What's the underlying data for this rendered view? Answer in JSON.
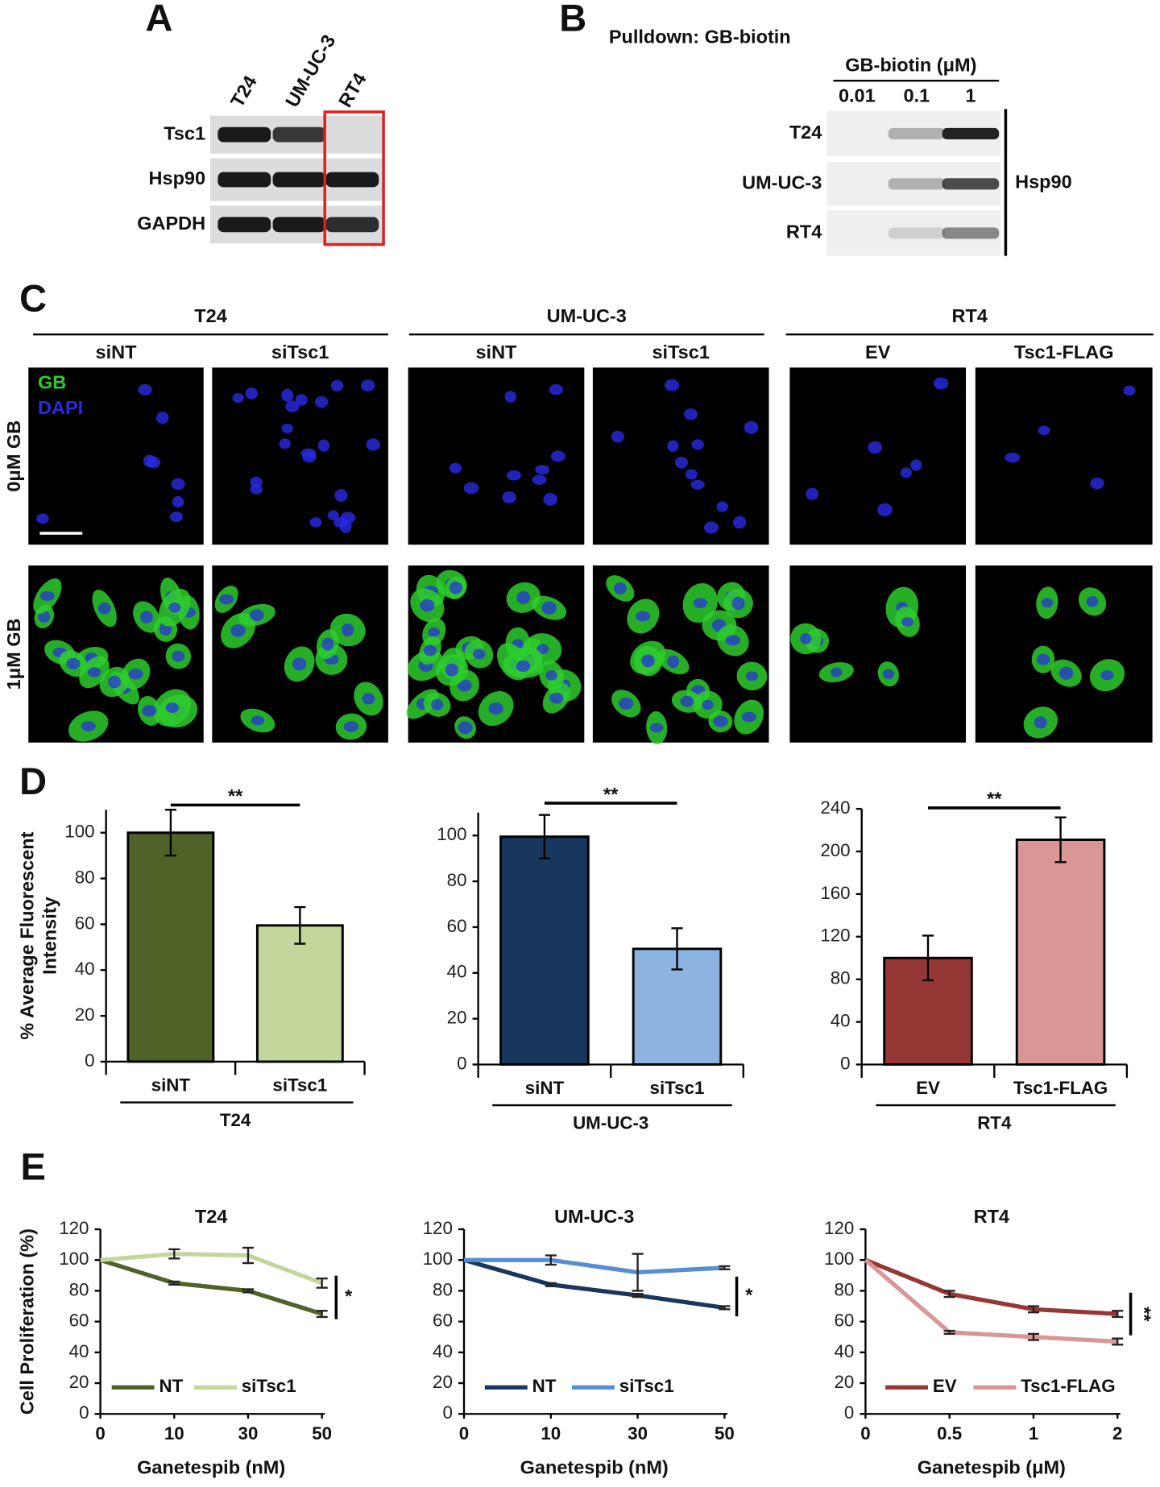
{
  "panel_a": {
    "label": "A",
    "lanes": [
      "T24",
      "UM-UC-3",
      "RT4"
    ],
    "rows": [
      "Tsc1",
      "Hsp90",
      "GAPDH"
    ]
  },
  "panel_b": {
    "label": "B",
    "title": "Pulldown: GB-biotin",
    "header": "GB-biotin (μM)",
    "concentrations": [
      "0.01",
      "0.1",
      "1"
    ],
    "rows": [
      "T24",
      "UM-UC-3",
      "RT4"
    ],
    "target": "Hsp90"
  },
  "panel_c": {
    "label": "C",
    "groups": [
      {
        "name": "T24",
        "conditions": [
          "siNT",
          "siTsc1"
        ]
      },
      {
        "name": "UM-UC-3",
        "conditions": [
          "siNT",
          "siTsc1"
        ]
      },
      {
        "name": "RT4",
        "conditions": [
          "EV",
          "Tsc1-FLAG"
        ]
      }
    ],
    "rows": [
      "0μM GB",
      "1μM GB"
    ],
    "channels": [
      {
        "name": "GB",
        "color": "#2ecc2e"
      },
      {
        "name": "DAPI",
        "color": "#2a2ae6"
      }
    ]
  },
  "panel_d": {
    "label": "D"
  },
  "panel_e": {
    "label": "E"
  },
  "chart_data": [
    {
      "type": "bar",
      "ylabel": [
        "% Average Fluorescent",
        "Intensity"
      ],
      "group": "T24",
      "categories": [
        "siNT",
        "siTsc1"
      ],
      "values": [
        100,
        59.5
      ],
      "errors": [
        10,
        8
      ],
      "colors": [
        "#4f6228",
        "#c3d69b"
      ],
      "ylim": [
        0,
        110
      ],
      "yticks": [
        0,
        20,
        40,
        60,
        80,
        100
      ],
      "significance": "**"
    },
    {
      "type": "bar",
      "group": "UM-UC-3",
      "categories": [
        "siNT",
        "siTsc1"
      ],
      "values": [
        99.5,
        50.5
      ],
      "errors": [
        9.5,
        9
      ],
      "colors": [
        "#17375e",
        "#8db3e2"
      ],
      "ylim": [
        0,
        110
      ],
      "yticks": [
        0,
        20,
        40,
        60,
        80,
        100
      ],
      "significance": "**"
    },
    {
      "type": "bar",
      "group": "RT4",
      "categories": [
        "EV",
        "Tsc1-FLAG"
      ],
      "values": [
        100,
        211
      ],
      "errors": [
        21,
        21
      ],
      "colors": [
        "#953735",
        "#d99694"
      ],
      "ylim": [
        0,
        240
      ],
      "yticks": [
        0,
        40,
        80,
        120,
        160,
        200,
        240
      ],
      "significance": "**"
    },
    {
      "type": "line",
      "title": "T24",
      "ylabel": "Cell Proliferation (%)",
      "xlabel": "Ganetespib (nM)",
      "categories": [
        "0",
        "10",
        "30",
        "50"
      ],
      "ylim": [
        0,
        120
      ],
      "yticks": [
        0,
        20,
        40,
        60,
        80,
        100,
        120
      ],
      "significance": "*",
      "series": [
        {
          "name": "NT",
          "color": "#4f6228",
          "values": [
            100,
            85,
            80,
            65
          ],
          "errors": [
            0,
            1,
            1,
            2
          ]
        },
        {
          "name": "siTsc1",
          "color": "#c3d69b",
          "values": [
            100,
            104,
            103,
            85
          ],
          "errors": [
            0,
            3,
            5,
            3
          ]
        }
      ]
    },
    {
      "type": "line",
      "title": "UM-UC-3",
      "xlabel": "Ganetespib (nM)",
      "categories": [
        "0",
        "10",
        "30",
        "50"
      ],
      "ylim": [
        0,
        120
      ],
      "yticks": [
        0,
        20,
        40,
        60,
        80,
        100,
        120
      ],
      "significance": "*",
      "series": [
        {
          "name": "NT",
          "color": "#17375e",
          "values": [
            100,
            84,
            77,
            69
          ],
          "errors": [
            0,
            1,
            1,
            1
          ]
        },
        {
          "name": "siTsc1",
          "color": "#558ed5",
          "values": [
            100,
            100,
            92,
            95
          ],
          "errors": [
            0,
            3,
            12,
            1
          ]
        }
      ]
    },
    {
      "type": "line",
      "title": "RT4",
      "xlabel": "Ganetespib (μM)",
      "categories": [
        "0",
        "0.5",
        "1",
        "2"
      ],
      "ylim": [
        0,
        120
      ],
      "yticks": [
        0,
        20,
        40,
        60,
        80,
        100,
        120
      ],
      "significance": "**",
      "series": [
        {
          "name": "EV",
          "color": "#953735",
          "values": [
            100,
            78,
            68,
            65
          ],
          "errors": [
            0,
            2,
            2,
            2
          ]
        },
        {
          "name": "Tsc1-FLAG",
          "color": "#d99694",
          "values": [
            100,
            53,
            50,
            47
          ],
          "errors": [
            0,
            1,
            2,
            2
          ]
        }
      ]
    }
  ]
}
